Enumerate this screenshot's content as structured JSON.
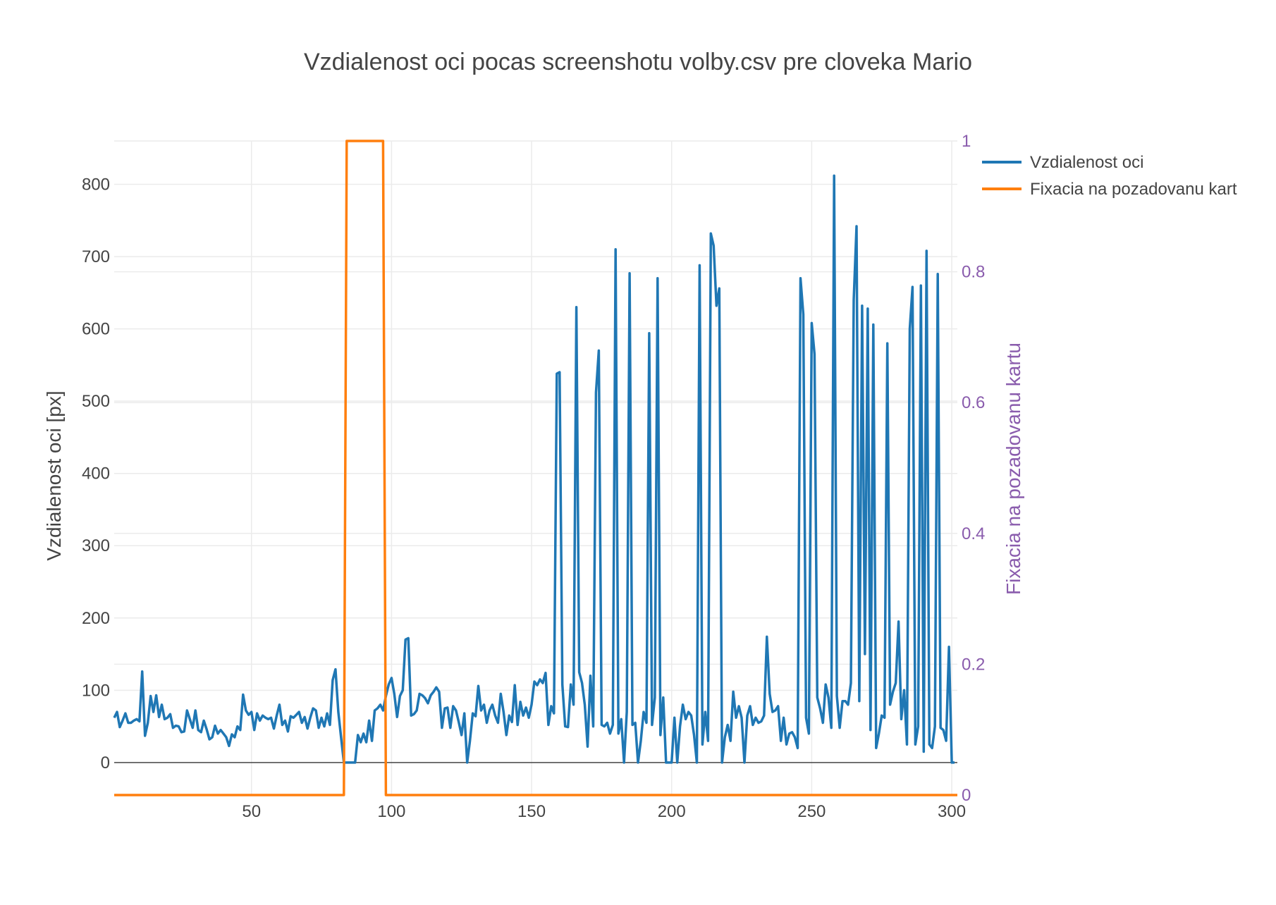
{
  "chart_data": {
    "type": "line",
    "title": "Vzdialenost oci pocas screenshotu volby.csv pre cloveka Mario",
    "xlabel": "",
    "ylabel": "Vzdialenost oci [px]",
    "y2label": "Fixacia na pozadovanu kartu",
    "xlim": [
      1,
      302
    ],
    "ylim": [
      -45,
      860
    ],
    "y2lim": [
      0,
      1
    ],
    "x_ticks": [
      50,
      100,
      150,
      200,
      250,
      300
    ],
    "y_ticks": [
      0,
      100,
      200,
      300,
      400,
      500,
      600,
      700,
      800
    ],
    "y2_ticks": [
      0,
      0.2,
      0.4,
      0.6,
      0.8,
      1
    ],
    "y2_tick_labels": [
      "0",
      "0.2",
      "0.4",
      "0.6",
      "0.8",
      "1"
    ],
    "grid": true,
    "legend_position": "top-right",
    "series": [
      {
        "name": "Vzdialenost oci",
        "axis": "y",
        "color": "#1f77b4",
        "x_start": 1,
        "values": [
          62,
          70,
          49,
          58,
          68,
          55,
          55,
          58,
          60,
          57,
          126,
          37,
          55,
          92,
          70,
          93,
          63,
          80,
          60,
          62,
          67,
          48,
          51,
          50,
          42,
          43,
          72,
          60,
          48,
          72,
          45,
          42,
          58,
          46,
          32,
          35,
          51,
          40,
          45,
          40,
          35,
          23,
          39,
          35,
          50,
          45,
          94,
          72,
          66,
          70,
          45,
          68,
          58,
          65,
          62,
          60,
          62,
          47,
          65,
          80,
          52,
          58,
          43,
          64,
          62,
          66,
          70,
          55,
          63,
          47,
          62,
          75,
          72,
          48,
          62,
          50,
          68,
          52,
          114,
          129,
          70,
          35,
          0,
          0,
          0,
          0,
          0,
          38,
          28,
          40,
          28,
          58,
          30,
          72,
          75,
          80,
          72,
          92,
          108,
          117,
          95,
          63,
          92,
          100,
          170,
          172,
          65,
          67,
          72,
          95,
          93,
          89,
          82,
          93,
          98,
          104,
          98,
          48,
          75,
          76,
          48,
          78,
          72,
          56,
          38,
          68,
          0,
          30,
          68,
          64,
          106,
          72,
          80,
          55,
          72,
          80,
          65,
          55,
          95,
          70,
          38,
          65,
          56,
          107,
          52,
          84,
          65,
          76,
          62,
          80,
          112,
          107,
          115,
          110,
          124,
          52,
          78,
          68,
          538,
          540,
          108,
          50,
          49,
          108,
          80,
          630,
          125,
          110,
          80,
          22,
          120,
          50,
          512,
          570,
          52,
          50,
          55,
          40,
          52,
          710,
          40,
          60,
          0,
          70,
          677,
          52,
          55,
          0,
          30,
          70,
          55,
          594,
          52,
          90,
          670,
          38,
          90,
          0,
          0,
          0,
          62,
          0,
          50,
          80,
          60,
          70,
          65,
          38,
          0,
          688,
          25,
          70,
          30,
          732,
          715,
          632,
          656,
          0,
          35,
          52,
          30,
          98,
          62,
          78,
          62,
          0,
          65,
          78,
          52,
          62,
          55,
          57,
          65,
          174,
          95,
          70,
          72,
          78,
          30,
          62,
          25,
          40,
          42,
          35,
          20,
          670,
          620,
          62,
          40,
          608,
          565,
          90,
          75,
          55,
          108,
          90,
          48,
          812,
          92,
          48,
          85,
          85,
          80,
          110,
          640,
          742,
          85,
          632,
          150,
          628,
          45,
          606,
          20,
          40,
          65,
          62,
          580,
          80,
          98,
          110,
          195,
          60,
          100,
          25,
          600,
          658,
          25,
          50,
          660,
          15,
          708,
          25,
          20,
          50,
          676,
          48,
          45,
          30,
          160,
          0,
          0
        ]
      },
      {
        "name": "Fixacia na pozadovanu kart",
        "axis": "y2",
        "color": "#ff7f0e",
        "x": [
          1,
          83,
          84,
          97,
          98,
          302
        ],
        "values": [
          0,
          0,
          1,
          1,
          0,
          0
        ]
      }
    ]
  }
}
